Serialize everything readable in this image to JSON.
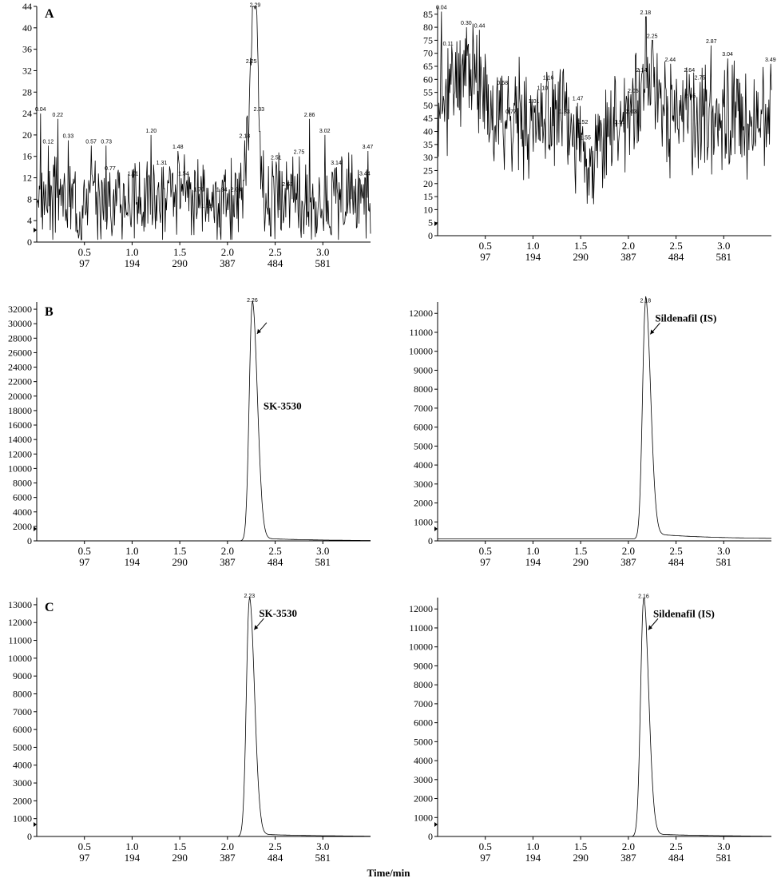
{
  "figure": {
    "xlabel": "Time/min",
    "panel_labels": [
      "A",
      "B",
      "C"
    ]
  },
  "chart_data": [
    {
      "panel": "A",
      "position": "left",
      "type": "line",
      "ylim": [
        0,
        44
      ],
      "yticks": [
        0,
        4,
        8,
        12,
        16,
        20,
        24,
        28,
        32,
        36,
        40,
        44
      ],
      "xlim": [
        0,
        3.5
      ],
      "xticks": [
        0.5,
        1.0,
        1.5,
        2.0,
        2.5,
        3.0
      ],
      "xtick_labels": [
        "0.5",
        "1.0",
        "1.5",
        "2.0",
        "2.5",
        "3.0"
      ],
      "scan_labels": [
        "97",
        "194",
        "290",
        "387",
        "484",
        "581"
      ],
      "peak_labels": [
        {
          "x": 0.04,
          "y": 24,
          "text": "0.04"
        },
        {
          "x": 0.12,
          "y": 18,
          "text": "0.12"
        },
        {
          "x": 0.22,
          "y": 23,
          "text": "0.22"
        },
        {
          "x": 0.33,
          "y": 19,
          "text": "0.33"
        },
        {
          "x": 0.57,
          "y": 18,
          "text": "0.57"
        },
        {
          "x": 0.73,
          "y": 18,
          "text": "0.73"
        },
        {
          "x": 0.77,
          "y": 13,
          "text": "0.77"
        },
        {
          "x": 1.01,
          "y": 12,
          "text": "1.01"
        },
        {
          "x": 1.2,
          "y": 20,
          "text": "1.20"
        },
        {
          "x": 1.31,
          "y": 14,
          "text": "1.31"
        },
        {
          "x": 1.48,
          "y": 17,
          "text": "1.48"
        },
        {
          "x": 1.54,
          "y": 12,
          "text": "1.54"
        },
        {
          "x": 1.7,
          "y": 9,
          "text": "1.70"
        },
        {
          "x": 1.78,
          "y": 6,
          "text": "1.78"
        },
        {
          "x": 1.94,
          "y": 9,
          "text": "1.94"
        },
        {
          "x": 2.09,
          "y": 9,
          "text": "2.09"
        },
        {
          "x": 2.18,
          "y": 19,
          "text": "2.18"
        },
        {
          "x": 2.25,
          "y": 33,
          "text": "2.25"
        },
        {
          "x": 2.29,
          "y": 43.5,
          "text": "2.29"
        },
        {
          "x": 2.33,
          "y": 24,
          "text": "2.33"
        },
        {
          "x": 2.51,
          "y": 15,
          "text": "2.51"
        },
        {
          "x": 2.63,
          "y": 10,
          "text": "2.63"
        },
        {
          "x": 2.75,
          "y": 16,
          "text": "2.75"
        },
        {
          "x": 2.86,
          "y": 23,
          "text": "2.86"
        },
        {
          "x": 3.02,
          "y": 20,
          "text": "3.02"
        },
        {
          "x": 3.14,
          "y": 14,
          "text": "3.14"
        },
        {
          "x": 3.44,
          "y": 12,
          "text": "3.44"
        },
        {
          "x": 3.47,
          "y": 17,
          "text": "3.47"
        }
      ],
      "trace": {
        "kind": "noise",
        "base": 8,
        "amp": 6,
        "seed": 3,
        "bumps": [
          {
            "x": 2.25,
            "h": 22,
            "w": 0.05
          },
          {
            "x": 2.29,
            "h": 32,
            "w": 0.03
          },
          {
            "x": 2.33,
            "h": 10,
            "w": 0.03
          }
        ]
      }
    },
    {
      "panel": "A",
      "position": "right",
      "type": "line",
      "ylim": [
        0,
        88
      ],
      "yticks": [
        0,
        5,
        10,
        15,
        20,
        25,
        30,
        35,
        40,
        45,
        50,
        55,
        60,
        65,
        70,
        75,
        80,
        85
      ],
      "xlim": [
        0,
        3.5
      ],
      "xticks": [
        0.5,
        1.0,
        1.5,
        2.0,
        2.5,
        3.0
      ],
      "xtick_labels": [
        "0.5",
        "1.0",
        "1.5",
        "2.0",
        "2.5",
        "3.0"
      ],
      "scan_labels": [
        "97",
        "194",
        "290",
        "387",
        "484",
        "581"
      ],
      "peak_labels": [
        {
          "x": 0.04,
          "y": 86,
          "text": "0.04"
        },
        {
          "x": 0.11,
          "y": 72,
          "text": "0.11"
        },
        {
          "x": 0.3,
          "y": 80,
          "text": "0.30"
        },
        {
          "x": 0.44,
          "y": 79,
          "text": "0.44"
        },
        {
          "x": 0.68,
          "y": 57,
          "text": "0.68"
        },
        {
          "x": 0.77,
          "y": 46,
          "text": "0.77"
        },
        {
          "x": 1.01,
          "y": 50,
          "text": "1.01"
        },
        {
          "x": 1.1,
          "y": 55,
          "text": "1.10"
        },
        {
          "x": 1.16,
          "y": 59,
          "text": "1.16"
        },
        {
          "x": 1.33,
          "y": 46,
          "text": "1.33"
        },
        {
          "x": 1.47,
          "y": 51,
          "text": "1.47"
        },
        {
          "x": 1.52,
          "y": 42,
          "text": "1.52"
        },
        {
          "x": 1.55,
          "y": 36,
          "text": "1.55"
        },
        {
          "x": 1.91,
          "y": 42,
          "text": "1.91"
        },
        {
          "x": 2.03,
          "y": 46,
          "text": "2.03"
        },
        {
          "x": 2.05,
          "y": 54,
          "text": "2.05"
        },
        {
          "x": 2.14,
          "y": 62,
          "text": "2.14"
        },
        {
          "x": 2.18,
          "y": 84,
          "text": "2.18"
        },
        {
          "x": 2.25,
          "y": 75,
          "text": "2.25"
        },
        {
          "x": 2.44,
          "y": 66,
          "text": "2.44"
        },
        {
          "x": 2.64,
          "y": 62,
          "text": "2.64"
        },
        {
          "x": 2.65,
          "y": 52,
          "text": "2.65"
        },
        {
          "x": 2.75,
          "y": 59,
          "text": "2.75"
        },
        {
          "x": 2.87,
          "y": 73,
          "text": "2.87"
        },
        {
          "x": 3.04,
          "y": 68,
          "text": "3.04"
        },
        {
          "x": 3.49,
          "y": 66,
          "text": "3.49"
        }
      ],
      "trace": {
        "kind": "noise",
        "base": 45,
        "amp": 16,
        "seed": 11,
        "bumps": [
          {
            "x": 0.3,
            "h": 20,
            "w": 0.2
          },
          {
            "x": 1.6,
            "h": -18,
            "w": 0.18
          },
          {
            "x": 2.2,
            "h": 18,
            "w": 0.12
          }
        ]
      }
    },
    {
      "panel": "B",
      "position": "left",
      "type": "line",
      "ylim": [
        0,
        33000
      ],
      "yticks": [
        0,
        2000,
        4000,
        6000,
        8000,
        10000,
        12000,
        14000,
        16000,
        18000,
        20000,
        22000,
        24000,
        26000,
        28000,
        30000,
        32000
      ],
      "xlim": [
        0,
        3.5
      ],
      "xticks": [
        0.5,
        1.0,
        1.5,
        2.0,
        2.5,
        3.0
      ],
      "xtick_labels": [
        "0.5",
        "1.0",
        "1.5",
        "2.0",
        "2.5",
        "3.0"
      ],
      "scan_labels": [
        "97",
        "194",
        "290",
        "387",
        "484",
        "581"
      ],
      "peak": {
        "x": 2.26,
        "y": 32800,
        "label": "2.26"
      },
      "annotation": "SK-3530",
      "trace": {
        "kind": "peak",
        "baseline": 0,
        "tail": 400,
        "peak_x": 2.26,
        "height": 32800
      }
    },
    {
      "panel": "B",
      "position": "right",
      "type": "line",
      "ylim": [
        0,
        12600
      ],
      "yticks": [
        0,
        1000,
        2000,
        3000,
        4000,
        5000,
        6000,
        7000,
        8000,
        9000,
        10000,
        11000,
        12000
      ],
      "xlim": [
        0,
        3.5
      ],
      "xticks": [
        0.5,
        1.0,
        1.5,
        2.0,
        2.5,
        3.0
      ],
      "xtick_labels": [
        "0.5",
        "1.0",
        "1.5",
        "2.0",
        "2.5",
        "3.0"
      ],
      "scan_labels": [
        "97",
        "194",
        "290",
        "387",
        "484",
        "581"
      ],
      "peak": {
        "x": 2.18,
        "y": 12500,
        "label": "2.18"
      },
      "annotation": "Sildenafil (IS)",
      "trace": {
        "kind": "peak",
        "baseline": 100,
        "tail": 300,
        "peak_x": 2.18,
        "height": 12500
      }
    },
    {
      "panel": "C",
      "position": "left",
      "type": "line",
      "ylim": [
        0,
        13400
      ],
      "yticks": [
        0,
        1000,
        2000,
        3000,
        4000,
        5000,
        6000,
        7000,
        8000,
        9000,
        10000,
        11000,
        12000,
        13000
      ],
      "xlim": [
        0,
        3.5
      ],
      "xticks": [
        0.5,
        1.0,
        1.5,
        2.0,
        2.5,
        3.0
      ],
      "xtick_labels": [
        "0.5",
        "1.0",
        "1.5",
        "2.0",
        "2.5",
        "3.0"
      ],
      "scan_labels": [
        "97",
        "194",
        "290",
        "387",
        "484",
        "581"
      ],
      "peak": {
        "x": 2.23,
        "y": 13300,
        "label": "2.23"
      },
      "annotation": "SK-3530",
      "trace": {
        "kind": "peak",
        "baseline": 0,
        "tail": 150,
        "peak_x": 2.23,
        "height": 13300
      }
    },
    {
      "panel": "C",
      "position": "right",
      "type": "line",
      "ylim": [
        0,
        12600
      ],
      "yticks": [
        0,
        1000,
        2000,
        3000,
        4000,
        5000,
        6000,
        7000,
        8000,
        9000,
        10000,
        11000,
        12000
      ],
      "xlim": [
        0,
        3.5
      ],
      "xticks": [
        0.5,
        1.0,
        1.5,
        2.0,
        2.5,
        3.0
      ],
      "xtick_labels": [
        "0.5",
        "1.0",
        "1.5",
        "2.0",
        "2.5",
        "3.0"
      ],
      "scan_labels": [
        "97",
        "194",
        "290",
        "387",
        "484",
        "581"
      ],
      "peak": {
        "x": 2.16,
        "y": 12500,
        "label": "2.16"
      },
      "annotation": "Sildenafil (IS)",
      "trace": {
        "kind": "peak",
        "baseline": 0,
        "tail": 150,
        "peak_x": 2.16,
        "height": 12500
      }
    }
  ]
}
